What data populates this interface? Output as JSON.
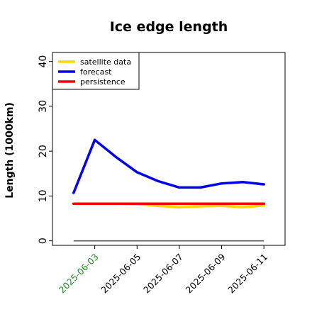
{
  "chart_data": {
    "type": "line",
    "title": "Ice edge length",
    "xlabel": "",
    "ylabel": "Length (1000km)",
    "xlim": [
      "2025-06-01",
      "2025-06-12"
    ],
    "ylim": [
      -1,
      42
    ],
    "yticks": [
      0,
      10,
      20,
      30,
      40
    ],
    "xticks": [
      "2025-06-03",
      "2025-06-05",
      "2025-06-07",
      "2025-06-09",
      "2025-06-11"
    ],
    "xtick_highlight": "2025-06-03",
    "xtick_highlight_color": "#228b22",
    "xtick_color": "#000000",
    "x": [
      "2025-06-02",
      "2025-06-03",
      "2025-06-04",
      "2025-06-05",
      "2025-06-06",
      "2025-06-07",
      "2025-06-08",
      "2025-06-09",
      "2025-06-10",
      "2025-06-11"
    ],
    "series": [
      {
        "name": "satellite data",
        "color": "#ffd700",
        "values": [
          8.3,
          8.3,
          8.3,
          8.2,
          7.8,
          7.5,
          7.7,
          7.8,
          7.5,
          7.9
        ]
      },
      {
        "name": "forecast",
        "color": "#0000ee",
        "values": [
          10.7,
          22.5,
          18.7,
          15.3,
          13.3,
          11.9,
          11.9,
          12.8,
          13.1,
          12.6
        ]
      },
      {
        "name": "persistence",
        "color": "#ff0000",
        "values": [
          8.3,
          8.3,
          8.3,
          8.3,
          8.3,
          8.3,
          8.3,
          8.3,
          8.3,
          8.3
        ]
      }
    ],
    "baseline": {
      "value": 0,
      "color": "#555555",
      "x": [
        "2025-06-02",
        "2025-06-11"
      ]
    },
    "legend": {
      "position": "top-left"
    },
    "grid": false
  }
}
